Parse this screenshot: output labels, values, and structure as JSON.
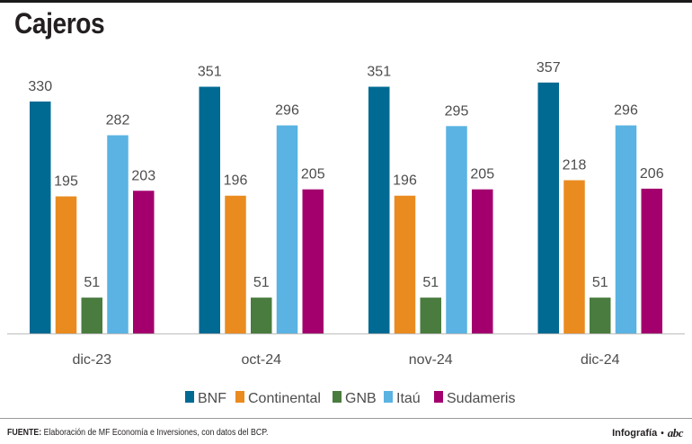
{
  "title": "Cajeros",
  "footer": {
    "source_label": "FUENTE:",
    "source_text": " Elaboración de MF Economía e Inversiones, con datos del BCP.",
    "credit_label": "Infografía",
    "credit_dot": "•",
    "logo_text": "abc"
  },
  "chart_data": {
    "type": "bar",
    "title": "Cajeros",
    "xlabel": "",
    "ylabel": "",
    "ylim": [
      0,
      380
    ],
    "grid": false,
    "legend_position": "bottom",
    "categories": [
      "dic-23",
      "oct-24",
      "nov-24",
      "dic-24"
    ],
    "series": [
      {
        "name": "BNF",
        "color": "#006a93",
        "values": [
          330,
          351,
          351,
          357
        ]
      },
      {
        "name": "Continental",
        "color": "#ea8b20",
        "values": [
          195,
          196,
          196,
          218
        ]
      },
      {
        "name": "GNB",
        "color": "#4a7c3f",
        "values": [
          51,
          51,
          51,
          51
        ]
      },
      {
        "name": "Itaú",
        "color": "#5ab3e2",
        "values": [
          282,
          296,
          295,
          296
        ]
      },
      {
        "name": "Sudameris",
        "color": "#a3006e",
        "values": [
          203,
          205,
          205,
          206
        ]
      }
    ]
  }
}
